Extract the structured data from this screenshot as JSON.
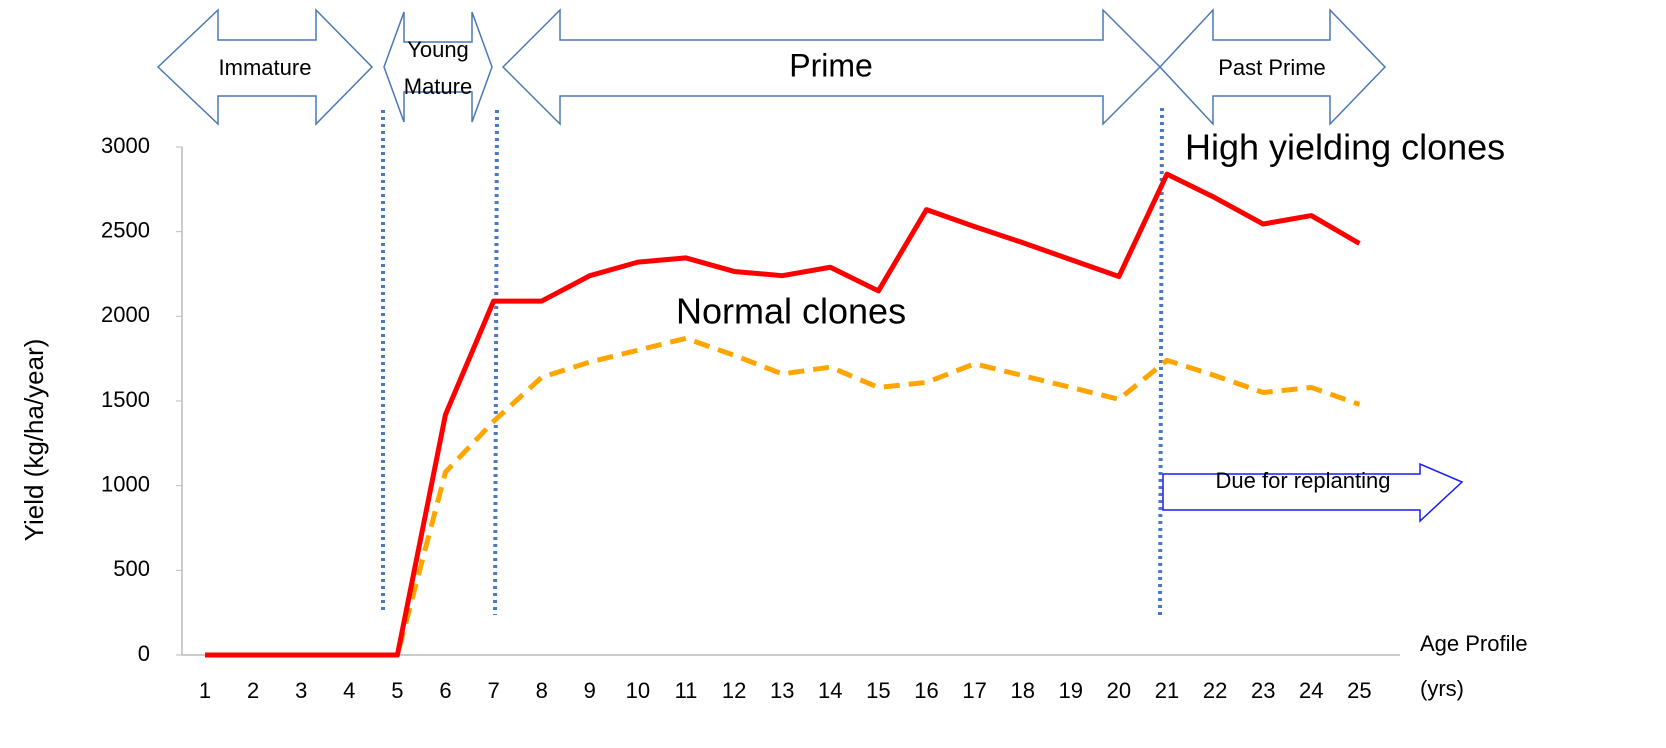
{
  "chart_data": {
    "type": "line",
    "categories": [
      "1",
      "2",
      "3",
      "4",
      "5",
      "6",
      "7",
      "8",
      "9",
      "10",
      "11",
      "12",
      "13",
      "14",
      "15",
      "16",
      "17",
      "18",
      "19",
      "20",
      "21",
      "22",
      "23",
      "24",
      "25"
    ],
    "series": [
      {
        "name": "High yielding clones",
        "color": "#ff0000",
        "dashed": false,
        "values": [
          0,
          0,
          0,
          0,
          0,
          1420,
          2090,
          2090,
          2240,
          2320,
          2345,
          2265,
          2240,
          2290,
          2150,
          2630,
          2530,
          2435,
          2335,
          2235,
          2840,
          2700,
          2545,
          2595,
          2430
        ]
      },
      {
        "name": "Normal clones",
        "color": "#ffa500",
        "dashed": true,
        "values": [
          0,
          0,
          0,
          0,
          0,
          1080,
          1380,
          1640,
          1730,
          1800,
          1870,
          1770,
          1660,
          1700,
          1580,
          1610,
          1720,
          1650,
          1580,
          1510,
          1740,
          1650,
          1550,
          1580,
          1480
        ]
      }
    ],
    "ylim": [
      0,
      3000
    ],
    "yticks": [
      0,
      500,
      1000,
      1500,
      2000,
      2500,
      3000
    ],
    "y_label": "Yield (kg/ha/year)",
    "x_label": [
      "Age Profile",
      "(yrs)"
    ],
    "phases": [
      "Immature",
      [
        "Young",
        "Mature"
      ],
      "Prime",
      "Past Prime"
    ],
    "annotation": "Due for replanting",
    "grid": false
  }
}
